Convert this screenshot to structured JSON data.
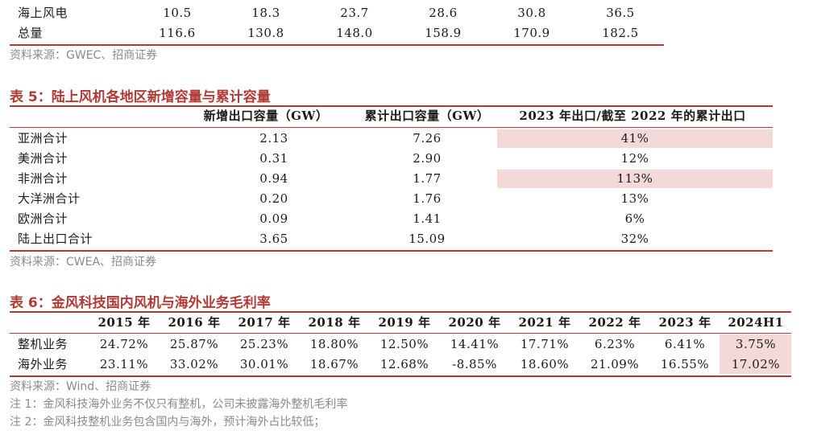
{
  "table4_tail": {
    "rows": [
      {
        "label": "海上风电",
        "values": [
          "10.5",
          "18.3",
          "23.7",
          "28.6",
          "30.8",
          "36.5"
        ]
      },
      {
        "label": "总量",
        "values": [
          "116.6",
          "130.8",
          "148.0",
          "158.9",
          "170.9",
          "182.5"
        ]
      }
    ],
    "source": "资料来源：GWEC、招商证券"
  },
  "table5": {
    "title": "表 5：陆上风机各地区新增容量与累计容量",
    "headers": [
      "新增出口容量（GW）",
      "累计出口容量（GW）",
      "2023 年出口/截至 2022 年的累计出口"
    ],
    "rows": [
      {
        "label": "亚洲合计",
        "new": "2.13",
        "cum": "7.26",
        "ratio": "41%",
        "highlight": true
      },
      {
        "label": "美洲合计",
        "new": "0.31",
        "cum": "2.90",
        "ratio": "12%",
        "highlight": false
      },
      {
        "label": "非洲合计",
        "new": "0.94",
        "cum": "1.77",
        "ratio": "113%",
        "highlight": true
      },
      {
        "label": "大洋洲合计",
        "new": "0.20",
        "cum": "1.76",
        "ratio": "13%",
        "highlight": false
      },
      {
        "label": "欧洲合计",
        "new": "0.09",
        "cum": "1.41",
        "ratio": "6%",
        "highlight": false
      },
      {
        "label": "陆上出口合计",
        "new": "3.65",
        "cum": "15.09",
        "ratio": "32%",
        "highlight": false
      }
    ],
    "source": "资料来源：CWEA、招商证券"
  },
  "table6": {
    "title": "表 6：金风科技国内风机与海外业务毛利率",
    "headers": [
      "2015 年",
      "2016 年",
      "2017 年",
      "2018 年",
      "2019 年",
      "2020 年",
      "2021 年",
      "2022 年",
      "2023 年",
      "2024H1"
    ],
    "rows": [
      {
        "label": "整机业务",
        "values": [
          "24.72%",
          "25.87%",
          "25.23%",
          "18.80%",
          "12.50%",
          "14.41%",
          "17.71%",
          "6.23%",
          "6.41%",
          "3.75%"
        ]
      },
      {
        "label": "海外业务",
        "values": [
          "23.11%",
          "33.02%",
          "30.01%",
          "18.67%",
          "12.68%",
          "-8.85%",
          "18.60%",
          "21.09%",
          "16.55%",
          "17.02%"
        ]
      }
    ],
    "source": "资料来源：Wind、招商证券",
    "notes": [
      "注 1：金风科技海外业务不仅只有整机，公司未披露海外整机毛利率",
      "注 2：金风科技整机业务包含国内与海外，预计海外占比较低；"
    ]
  }
}
